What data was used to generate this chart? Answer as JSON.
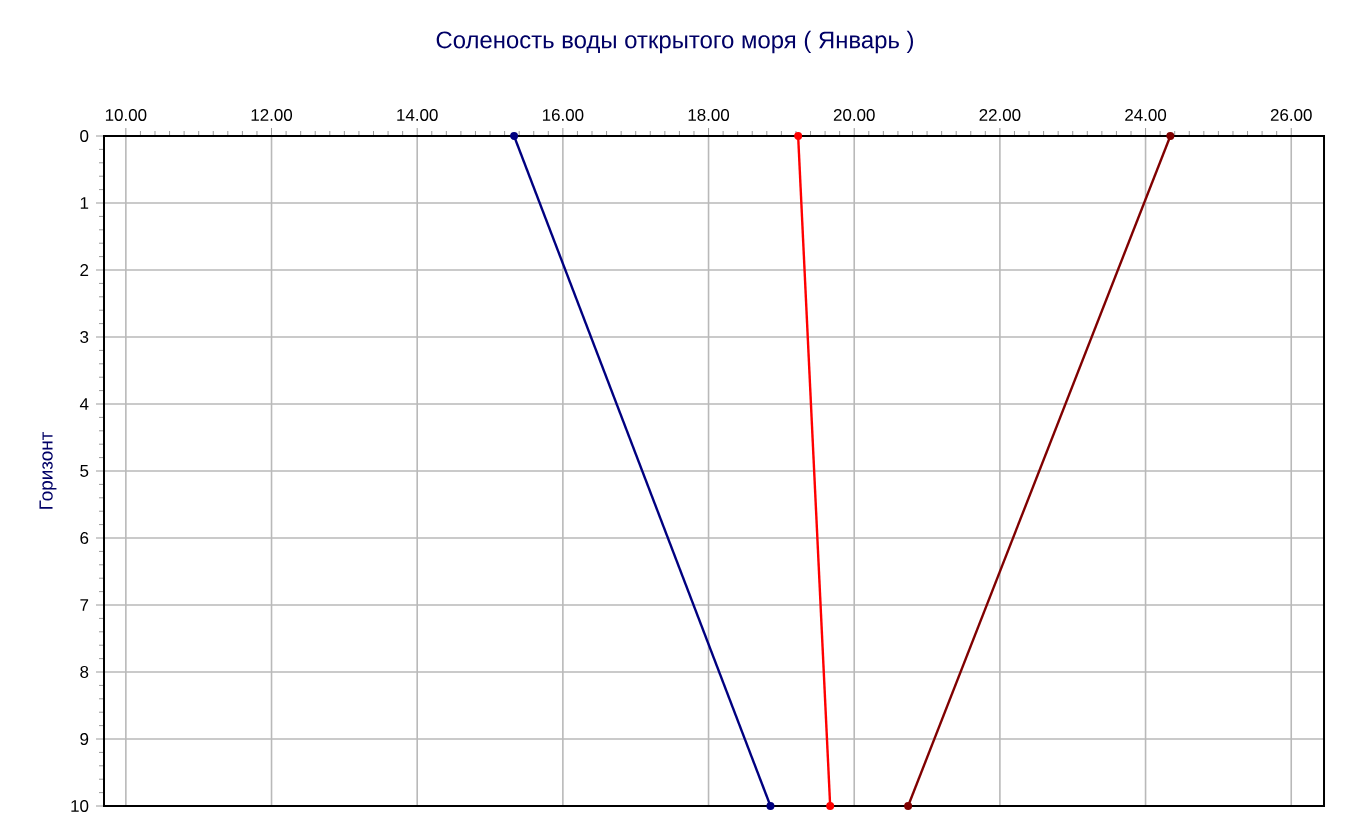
{
  "chart_data": {
    "type": "line",
    "title": "Соленость воды открытого моря    ( Январь )",
    "ylabel": "Горизонт",
    "xlim": [
      9.7,
      26.45
    ],
    "ylim": [
      10,
      0
    ],
    "xticks": [
      {
        "value": 10,
        "label": "10.00"
      },
      {
        "value": 12,
        "label": "12.00"
      },
      {
        "value": 14,
        "label": "14.00"
      },
      {
        "value": 16,
        "label": "16.00"
      },
      {
        "value": 18,
        "label": "18.00"
      },
      {
        "value": 20,
        "label": "20.00"
      },
      {
        "value": 22,
        "label": "22.00"
      },
      {
        "value": 24,
        "label": "24.00"
      },
      {
        "value": 26,
        "label": "26.00"
      }
    ],
    "yticks": [
      0,
      1,
      2,
      3,
      4,
      5,
      6,
      7,
      8,
      9,
      10
    ],
    "grid": true,
    "marker": "circle",
    "line_style": "solid",
    "series": [
      {
        "color": "#000080",
        "x": [
          15.33,
          18.85
        ],
        "values": [
          0,
          10
        ]
      },
      {
        "color": "#ff0000",
        "x": [
          19.23,
          19.67
        ],
        "values": [
          0,
          10
        ]
      },
      {
        "color": "#800000",
        "x": [
          24.34,
          20.74
        ],
        "values": [
          0,
          10
        ]
      }
    ]
  }
}
